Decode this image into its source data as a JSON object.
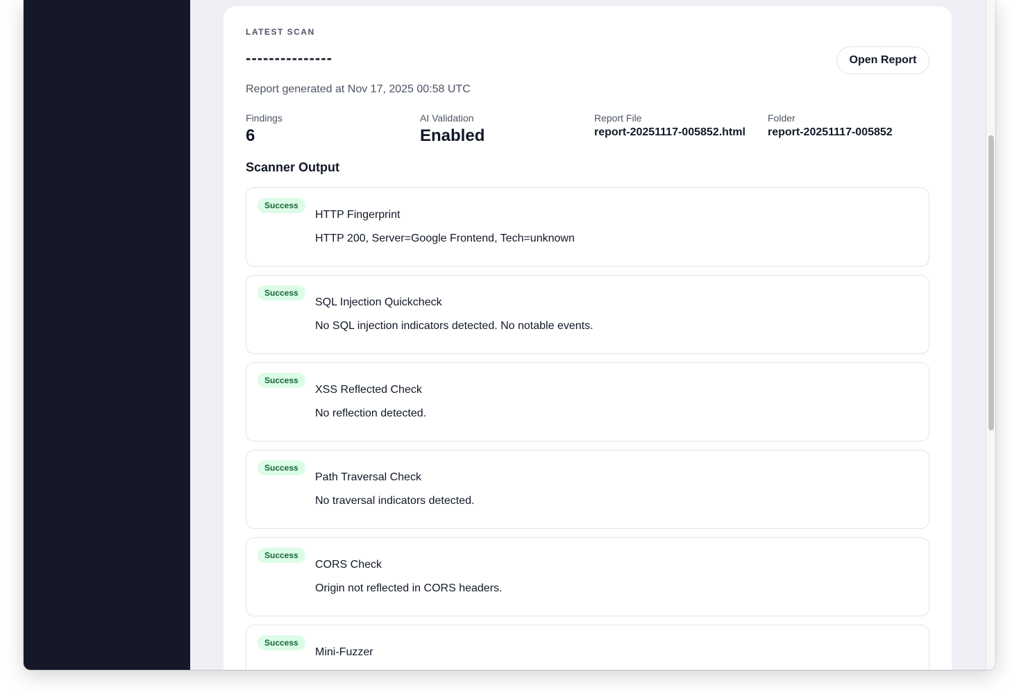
{
  "card": {
    "eyebrow": "LATEST SCAN",
    "title": "---------------",
    "open_report": "Open Report",
    "generated": "Report generated at Nov 17, 2025 00:58 UTC"
  },
  "meta": [
    {
      "label": "Findings",
      "value": "6"
    },
    {
      "label": "AI Validation",
      "value": "Enabled"
    },
    {
      "label": "Report File",
      "value": "report-20251117-005852.html"
    },
    {
      "label": "Folder",
      "value": "report-20251117-005852"
    }
  ],
  "section": "Scanner Output",
  "status_color": "#166534",
  "rows": [
    {
      "status": "Success",
      "name": "HTTP Fingerprint",
      "desc": "HTTP 200, Server=Google Frontend, Tech=unknown"
    },
    {
      "status": "Success",
      "name": "SQL Injection Quickcheck",
      "desc": "No SQL injection indicators detected. No notable events."
    },
    {
      "status": "Success",
      "name": "XSS Reflected Check",
      "desc": "No reflection detected."
    },
    {
      "status": "Success",
      "name": "Path Traversal Check",
      "desc": "No traversal indicators detected."
    },
    {
      "status": "Success",
      "name": "CORS Check",
      "desc": "Origin not reflected in CORS headers."
    },
    {
      "status": "Success",
      "name": "Mini-Fuzzer",
      "desc": ""
    }
  ]
}
